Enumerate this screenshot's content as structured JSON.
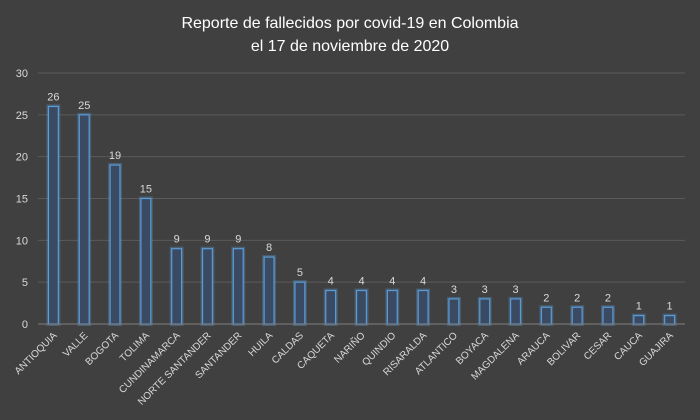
{
  "chart_data": {
    "type": "bar",
    "title": "Reporte de fallecidos por covid-19 en Colombia",
    "subtitle": "el 17 de noviembre de 2020",
    "xlabel": "",
    "ylabel": "",
    "ylim": [
      0,
      30
    ],
    "yticks": [
      0,
      5,
      10,
      15,
      20,
      25,
      30
    ],
    "grid": true,
    "legend": "none",
    "colors": {
      "background": "#404040",
      "bar_fill": "#3a4a63",
      "bar_edge": "#5b9bd5",
      "text": "#d9d9d9",
      "grid": "#5a5a5a"
    },
    "categories": [
      "ANTIOQUIA",
      "VALLE",
      "BOGOTA",
      "TOLIMA",
      "CUNDINAMARCA",
      "NORTE SANTANDER",
      "SANTANDER",
      "HUILA",
      "CALDAS",
      "CAQUETA",
      "NARIÑO",
      "QUINDIO",
      "RISARALDA",
      "ATLANTICO",
      "BOYACA",
      "MAGDALENA",
      "ARAUCA",
      "BOLIVAR",
      "CESAR",
      "CAUCA",
      "GUAJIRA"
    ],
    "values": [
      26,
      25,
      19,
      15,
      9,
      9,
      9,
      8,
      5,
      4,
      4,
      4,
      4,
      3,
      3,
      3,
      2,
      2,
      2,
      1,
      1
    ]
  }
}
